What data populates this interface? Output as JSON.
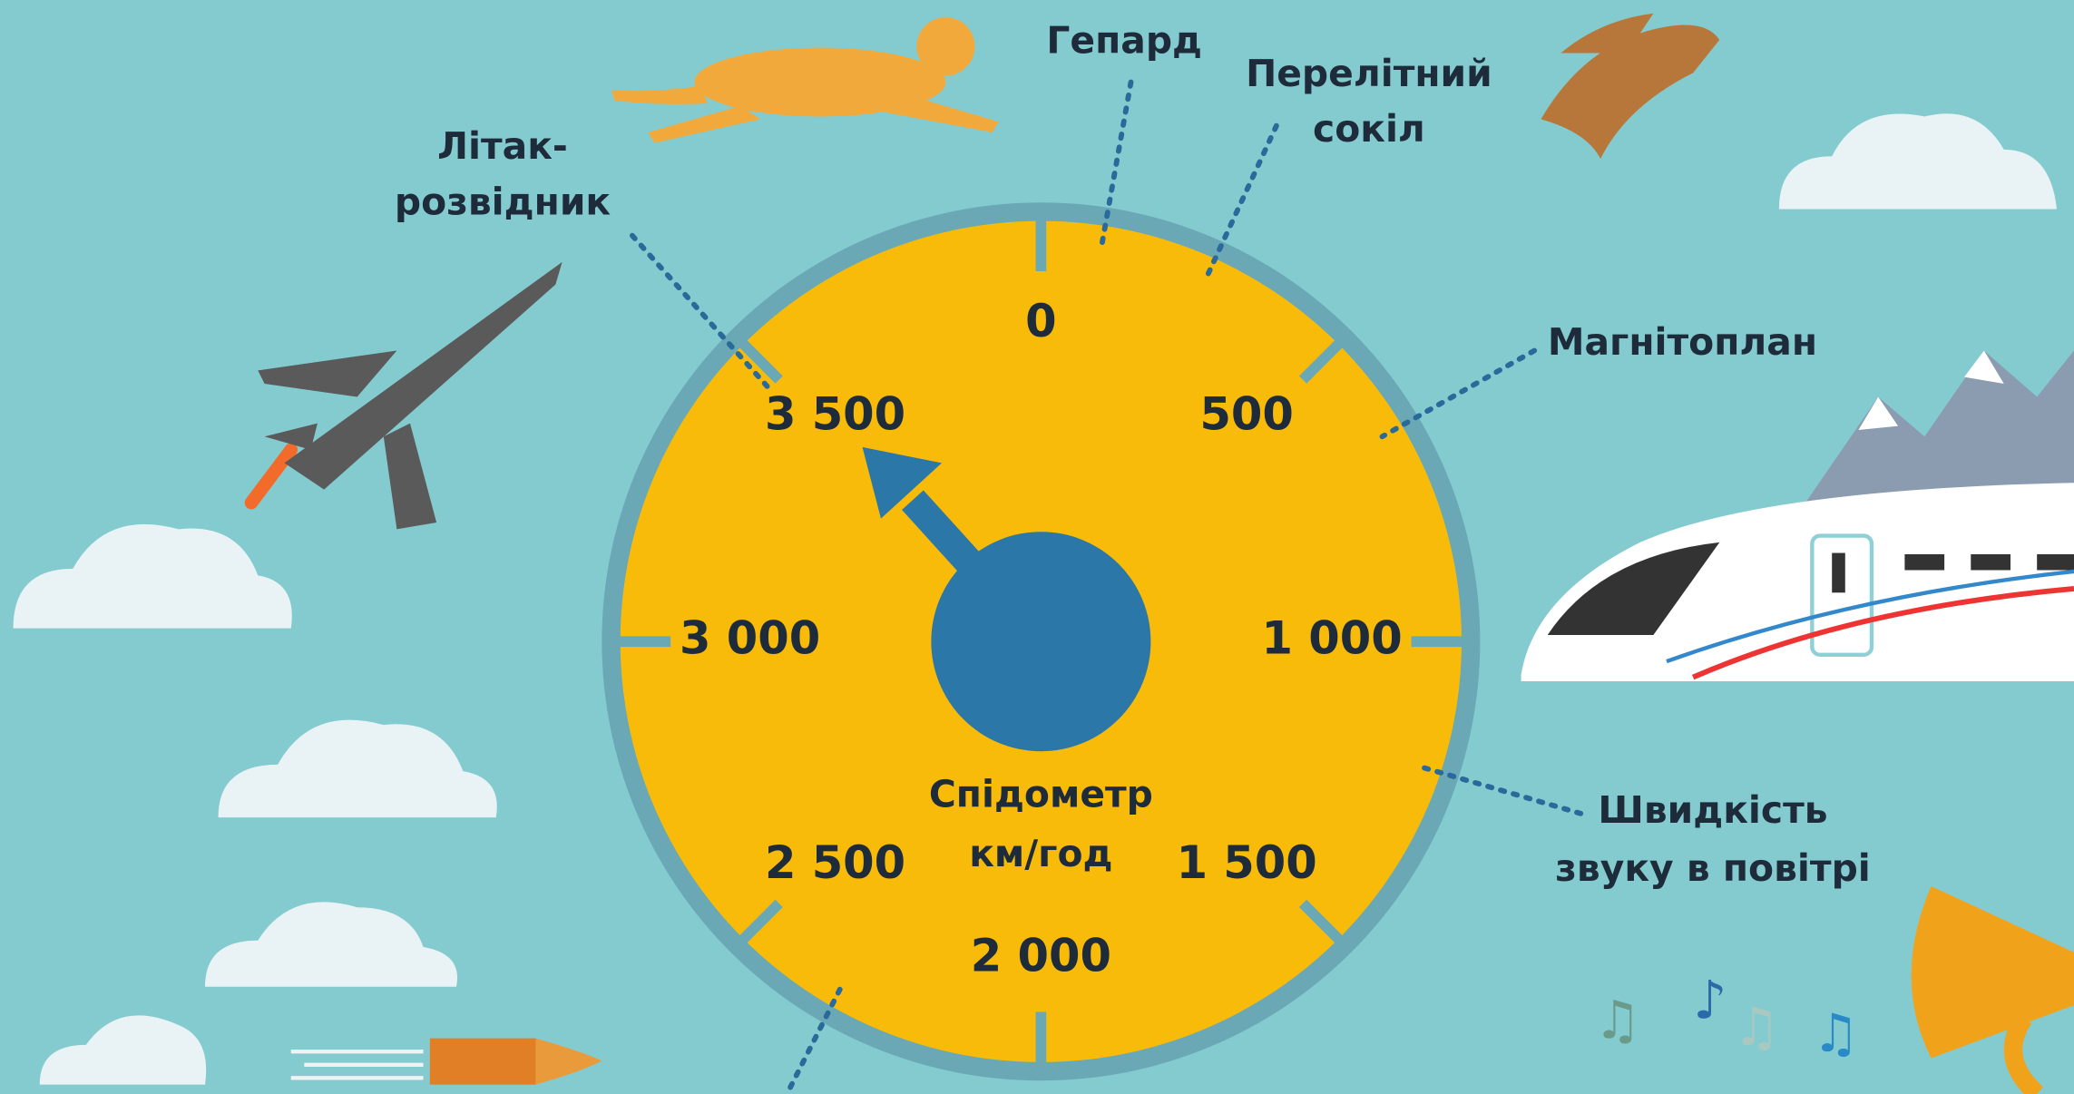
{
  "dial": {
    "ticks": [
      "0",
      "500",
      "1 000",
      "1 500",
      "2 000",
      "2 500",
      "3 000",
      "3 500"
    ],
    "title": "Спідометр",
    "unit": "км/год"
  },
  "labels": {
    "cheetah": [
      "Гепард"
    ],
    "falcon": [
      "Перелітний",
      "сокіл"
    ],
    "jet": [
      "Літак-",
      "розвідник"
    ],
    "maglev": [
      "Магнітоплан"
    ],
    "sound": [
      "Швидкість",
      "звуку в повітрі"
    ]
  }
}
